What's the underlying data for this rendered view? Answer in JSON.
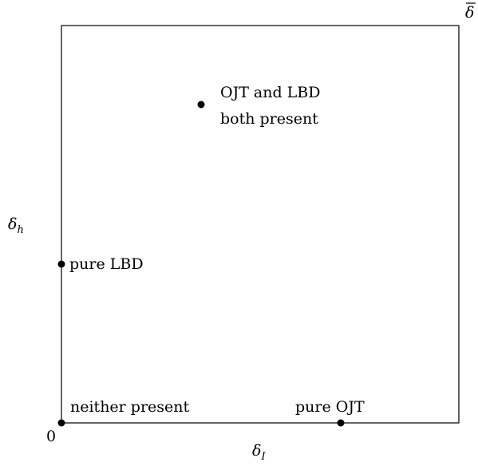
{
  "diagram": {
    "axes": {
      "origin": "0",
      "x_label": "δ",
      "x_label_sub": "I",
      "y_label": "δ",
      "y_label_sub": "h",
      "corner": "δ"
    },
    "points": [
      {
        "id": "neither",
        "label_lines": [
          "neither present"
        ]
      },
      {
        "id": "pure-ojt",
        "label_lines": [
          "pure OJT"
        ]
      },
      {
        "id": "pure-lbd",
        "label_lines": [
          "pure LBD"
        ]
      },
      {
        "id": "both",
        "label_lines": [
          "OJT and LBD",
          "both present"
        ]
      }
    ]
  }
}
